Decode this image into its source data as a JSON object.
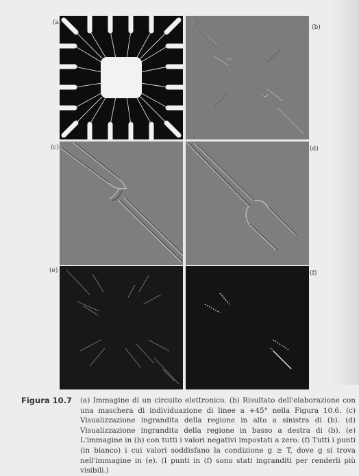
{
  "figure": {
    "label": "Figura 10.7",
    "caption": "(a) Immagine di un circuito elettronico. (b) Risultato dell'elaborazione con una maschera di individuazione di linee a +45° nella Figura 10.6. (c) Visualizzazione ingrandita della regione in alto a sinistra di (b). (d) Visualizzazione ingrandita della regione in basso a destra di (b). (e) L'immagine in (b) con tutti i valori negativi impostati a zero. (f) Tutti i punti (in bianco) i cui valori soddisfano la condizione g ≥ T, dove g si trova nell'immagine in (e). (I punti in (f) sono stati ingranditi per renderli più visibili.)",
    "panels": [
      {
        "id": "a",
        "label": "(a)"
      },
      {
        "id": "b",
        "label": "(b)"
      },
      {
        "id": "c",
        "label": "(c)"
      },
      {
        "id": "d",
        "label": "(d)"
      },
      {
        "id": "e",
        "label": "(e)"
      },
      {
        "id": "f",
        "label": "(f)"
      }
    ]
  },
  "colors": {
    "page": "#efedec",
    "panel_gray": "#7a7a7a",
    "panel_dark": "#141414",
    "circuit_black": "#0d0d0d",
    "circuit_white": "#f2f2f2"
  }
}
